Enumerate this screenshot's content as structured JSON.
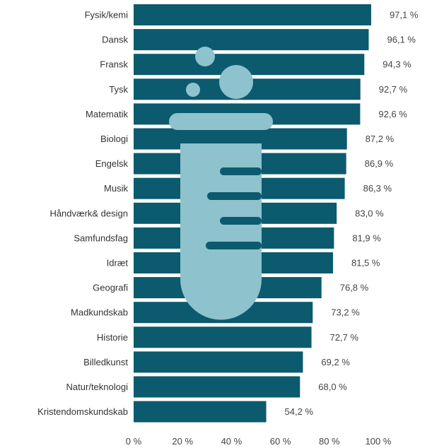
{
  "chart_data": {
    "type": "bar",
    "orientation": "horizontal",
    "categories": [
      "Fysik/kemi",
      "Dansk",
      "Fransk",
      "Tysk",
      "Matematik",
      "Biologi",
      "Engelsk",
      "Musik",
      "Håndværk& design",
      "Samfundsfag",
      "Idræt",
      "Geografi",
      "Madkundskab",
      "Historie",
      "Billedkunst",
      "Natur/teknologi",
      "Kristendomskundskab"
    ],
    "values": [
      97.1,
      96.1,
      94.3,
      92.7,
      92.6,
      87.2,
      86.9,
      86.3,
      83.0,
      81.9,
      81.5,
      76.8,
      73.2,
      72.7,
      69.2,
      68.0,
      54.2
    ],
    "value_labels": [
      "97,1 %",
      "96,1 %",
      "94,3 %",
      "92,7 %",
      "92,6 %",
      "87,2 %",
      "86,9 %",
      "86,3 %",
      "83,0 %",
      "81,9 %",
      "81,5 %",
      "76,8 %",
      "73,2 %",
      "72,7 %",
      "69,2 %",
      "68,0 %",
      "54,2 %"
    ],
    "xlim": [
      0,
      100
    ],
    "xticks": [
      0,
      20,
      40,
      60,
      80,
      100
    ],
    "xtick_labels": [
      "0 %",
      "20 %",
      "40 %",
      "60 %",
      "80 %",
      "100 %"
    ],
    "grid": false,
    "title": "",
    "xlabel": "",
    "ylabel": "",
    "colors": {
      "bar": "#0c5a6e",
      "illustration": "#8ec2cd"
    },
    "illustration": "test-tube-icon"
  }
}
